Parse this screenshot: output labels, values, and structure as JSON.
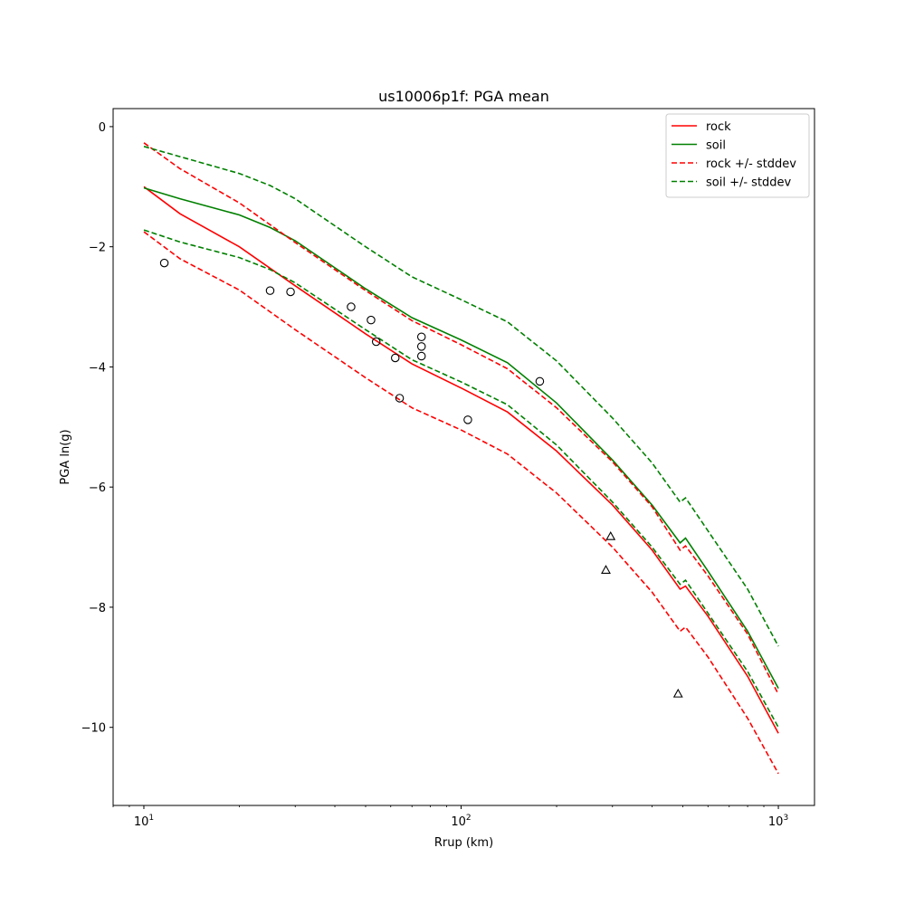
{
  "chart_data": {
    "type": "line",
    "title": "us10006p1f: PGA mean",
    "xlabel": "Rrup (km)",
    "ylabel": "PGA ln(g)",
    "xscale": "log",
    "xlim": [
      8,
      1300
    ],
    "ylim": [
      -11.3,
      0.3
    ],
    "grid": false,
    "legend_position": "top-right",
    "x_ticks": [
      {
        "value": 10,
        "base": "10",
        "exp": "1"
      },
      {
        "value": 100,
        "base": "10",
        "exp": "2"
      },
      {
        "value": 1000,
        "base": "10",
        "exp": "3"
      }
    ],
    "y_ticks": [
      {
        "value": 0,
        "label": "0"
      },
      {
        "value": -2,
        "label": "−2"
      },
      {
        "value": -4,
        "label": "−4"
      },
      {
        "value": -6,
        "label": "−6"
      },
      {
        "value": -8,
        "label": "−8"
      },
      {
        "value": -10,
        "label": "−10"
      }
    ],
    "series": [
      {
        "name": "rock",
        "color": "#ff0000",
        "style": "solid",
        "legend": true,
        "x": [
          10,
          13,
          20,
          30,
          50,
          70,
          100,
          140,
          200,
          300,
          400,
          490,
          510,
          600,
          800,
          1000
        ],
        "y": [
          -1.0,
          -1.45,
          -2.0,
          -2.65,
          -3.45,
          -3.95,
          -4.35,
          -4.75,
          -5.4,
          -6.3,
          -7.05,
          -7.7,
          -7.65,
          -8.15,
          -9.15,
          -10.1
        ]
      },
      {
        "name": "soil",
        "color": "#008000",
        "style": "solid",
        "legend": true,
        "x": [
          10,
          13,
          20,
          25,
          30,
          50,
          70,
          100,
          140,
          200,
          300,
          400,
          490,
          510,
          600,
          800,
          1000
        ],
        "y": [
          -1.02,
          -1.2,
          -1.47,
          -1.68,
          -1.9,
          -2.7,
          -3.18,
          -3.55,
          -3.93,
          -4.6,
          -5.55,
          -6.3,
          -6.93,
          -6.85,
          -7.4,
          -8.4,
          -9.35
        ]
      },
      {
        "name": "rock +/- stddev",
        "color": "#ff0000",
        "style": "dashed",
        "legend": true,
        "x": [
          10,
          13,
          20,
          30,
          50,
          70,
          100,
          140,
          200,
          300,
          400,
          490,
          510,
          600,
          800,
          1000
        ],
        "y": [
          -0.27,
          -0.7,
          -1.27,
          -1.93,
          -2.73,
          -3.23,
          -3.63,
          -4.03,
          -4.68,
          -5.58,
          -6.33,
          -7.05,
          -6.98,
          -7.48,
          -8.45,
          -9.45
        ]
      },
      {
        "name": "rock lower",
        "color": "#ff0000",
        "style": "dashed",
        "legend": false,
        "x": [
          10,
          13,
          20,
          30,
          50,
          70,
          100,
          140,
          200,
          300,
          400,
          490,
          510,
          600,
          800,
          1000
        ],
        "y": [
          -1.75,
          -2.2,
          -2.72,
          -3.38,
          -4.18,
          -4.68,
          -5.05,
          -5.45,
          -6.1,
          -7.0,
          -7.75,
          -8.4,
          -8.33,
          -8.83,
          -9.85,
          -10.77
        ]
      },
      {
        "name": "soil +/- stddev",
        "color": "#008000",
        "style": "dashed",
        "legend": true,
        "x": [
          10,
          13,
          20,
          25,
          30,
          50,
          70,
          100,
          140,
          200,
          300,
          400,
          490,
          510,
          600,
          800,
          1000
        ],
        "y": [
          -0.33,
          -0.5,
          -0.78,
          -0.98,
          -1.2,
          -2.0,
          -2.5,
          -2.88,
          -3.25,
          -3.9,
          -4.85,
          -5.6,
          -6.25,
          -6.18,
          -6.73,
          -7.7,
          -8.65
        ]
      },
      {
        "name": "soil lower",
        "color": "#008000",
        "style": "dashed",
        "legend": false,
        "x": [
          10,
          13,
          20,
          25,
          30,
          50,
          70,
          100,
          140,
          200,
          300,
          400,
          490,
          510,
          600,
          800,
          1000
        ],
        "y": [
          -1.72,
          -1.92,
          -2.18,
          -2.38,
          -2.6,
          -3.38,
          -3.88,
          -4.25,
          -4.63,
          -5.3,
          -6.25,
          -7.0,
          -7.62,
          -7.55,
          -8.1,
          -9.07,
          -10.0
        ]
      }
    ],
    "markers": [
      {
        "shape": "circle",
        "x": [
          11.6,
          25,
          29,
          45,
          52,
          54,
          62,
          64,
          75,
          75,
          75,
          105,
          177
        ],
        "y": [
          -2.27,
          -2.73,
          -2.75,
          -3.0,
          -3.22,
          -3.58,
          -3.85,
          -4.52,
          -3.5,
          -3.66,
          -3.82,
          -4.88,
          -4.24
        ]
      },
      {
        "shape": "triangle",
        "x": [
          286,
          296,
          483
        ],
        "y": [
          -7.38,
          -6.82,
          -9.44
        ]
      }
    ]
  }
}
